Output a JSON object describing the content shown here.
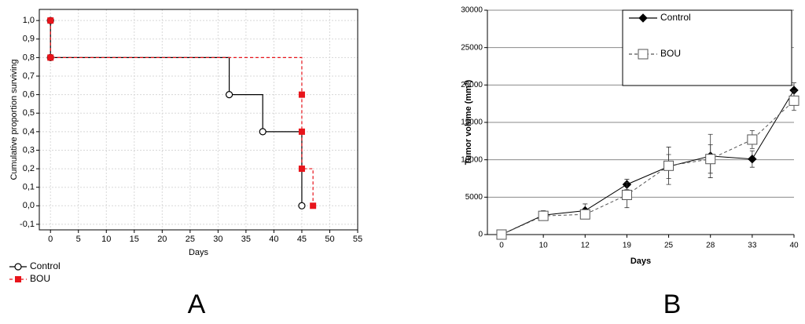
{
  "chart_data": [
    {
      "type": "step",
      "panel_label": "A",
      "xlabel": "Days",
      "ylabel": "Cumulative proportion surviving",
      "xlim": [
        -2,
        55
      ],
      "ylim": [
        -0.13,
        1.06
      ],
      "xticks": [
        0,
        5,
        10,
        15,
        20,
        25,
        30,
        35,
        40,
        45,
        50,
        55
      ],
      "yticks": [
        {
          "value": -0.1,
          "label": "-0,1"
        },
        {
          "value": 0,
          "label": "0,0"
        },
        {
          "value": 0.1,
          "label": "0,1"
        },
        {
          "value": 0.2,
          "label": "0,2"
        },
        {
          "value": 0.3,
          "label": "0,3"
        },
        {
          "value": 0.4,
          "label": "0,4"
        },
        {
          "value": 0.5,
          "label": "0,5"
        },
        {
          "value": 0.6,
          "label": "0,6"
        },
        {
          "value": 0.7,
          "label": "0,7"
        },
        {
          "value": 0.8,
          "label": "0,8"
        },
        {
          "value": 0.9,
          "label": "0,9"
        },
        {
          "value": 1.0,
          "label": "1,0"
        }
      ],
      "grid": "xy",
      "legend": "below-left",
      "series": [
        {
          "name": "Control",
          "color": "#000000",
          "marker": "circle",
          "marker_fill": "open",
          "dash": false,
          "x": [
            0,
            0,
            32,
            38,
            45
          ],
          "values": [
            1.0,
            0.8,
            0.6,
            0.4,
            0.0
          ]
        },
        {
          "name": "BOU",
          "color": "#e8141b",
          "marker": "square",
          "marker_fill": "filled",
          "dash": true,
          "x": [
            0,
            0,
            45,
            45,
            45,
            47
          ],
          "values": [
            1.0,
            0.8,
            0.6,
            0.4,
            0.2,
            0.0
          ]
        }
      ]
    },
    {
      "type": "line",
      "panel_label": "B",
      "xlabel": "Days",
      "ylabel": "Tumor volume (mm³)",
      "categories": [
        "0",
        "10",
        "12",
        "19",
        "25",
        "28",
        "33",
        "40"
      ],
      "ylim": [
        0,
        30000
      ],
      "yticks": [
        0,
        5000,
        10000,
        15000,
        20000,
        25000,
        30000
      ],
      "grid": "y",
      "legend": "top-right",
      "series": [
        {
          "name": "Control",
          "color": "#000000",
          "marker": "diamond",
          "marker_fill": "filled",
          "dash": false,
          "values": [
            0,
            2600,
            3200,
            6700,
            9100,
            10500,
            10100,
            19300
          ],
          "errors": [
            0,
            600,
            900,
            700,
            1600,
            2900,
            1100,
            1000
          ]
        },
        {
          "name": "BOU",
          "color": "#555555",
          "marker": "square",
          "marker_fill": "open",
          "dash": true,
          "values": [
            0,
            2500,
            2700,
            5300,
            9200,
            10100,
            12700,
            17900
          ],
          "errors": [
            0,
            500,
            300,
            1700,
            2500,
            1900,
            1200,
            1300
          ]
        }
      ]
    }
  ]
}
